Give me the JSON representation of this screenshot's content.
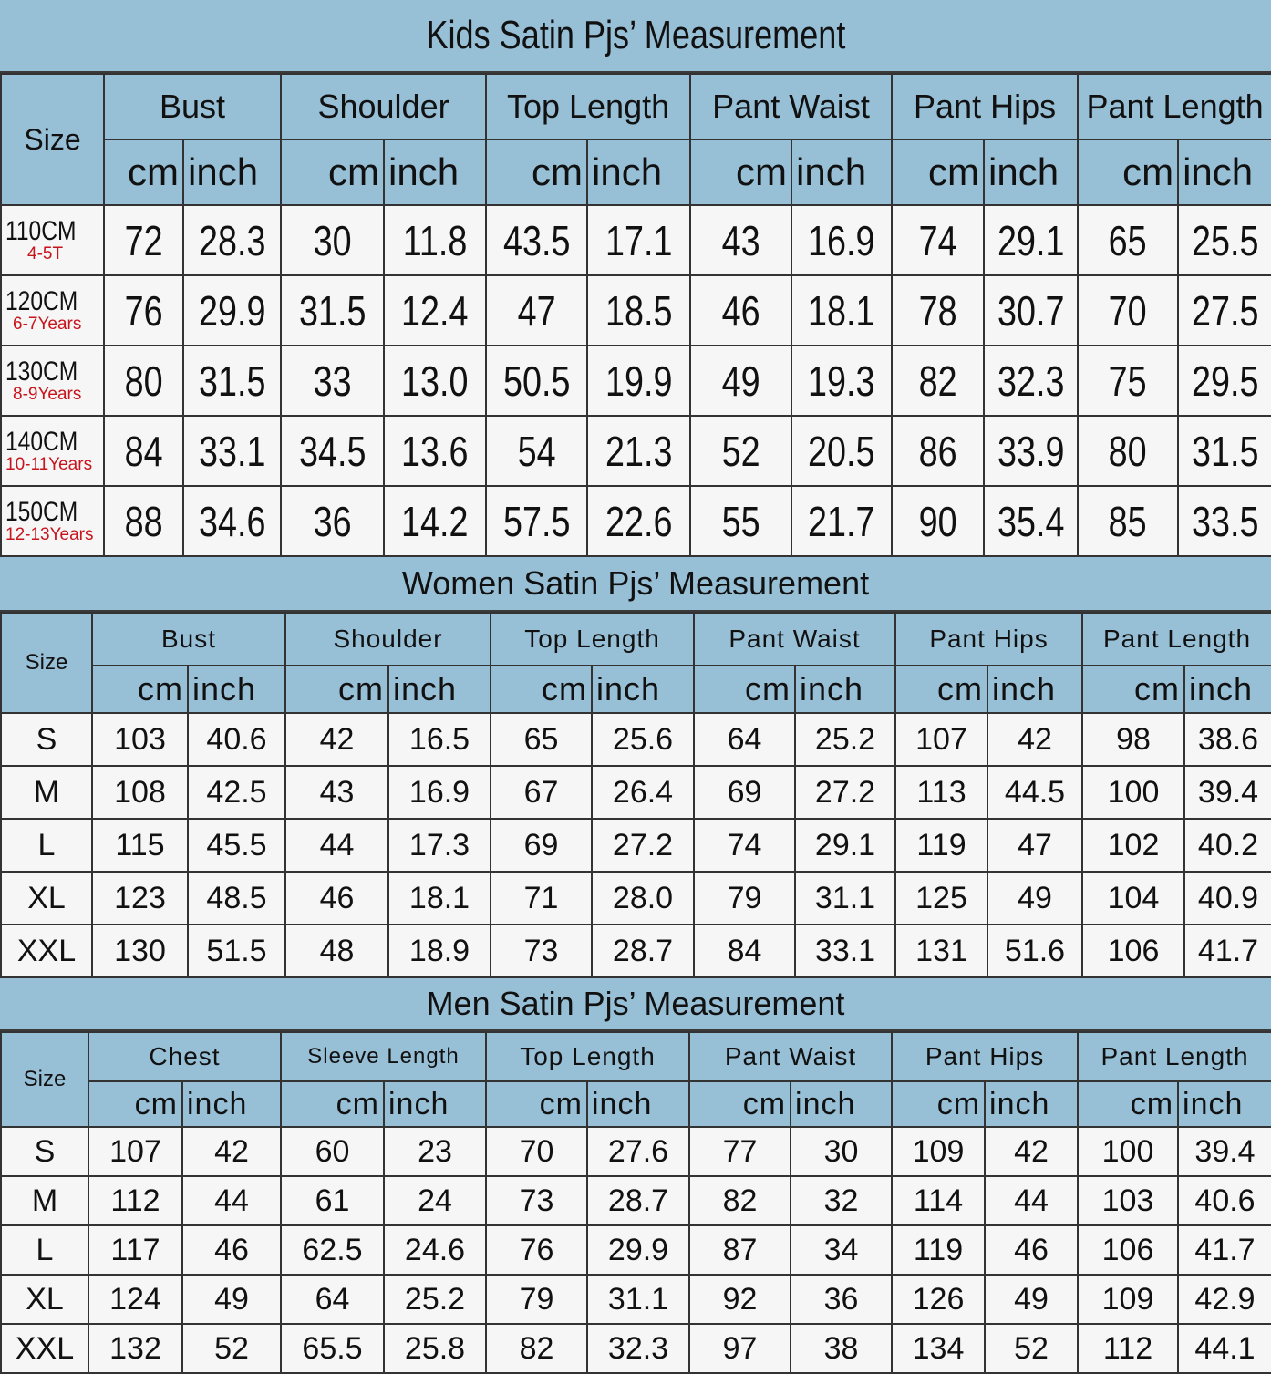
{
  "tables": [
    {
      "title": "Kids Satin Pjs’ Measurement",
      "size_header": "Size",
      "groups": [
        "Bust",
        "Shoulder",
        "Top Length",
        "Pant Waist",
        "Pant Hips",
        "Pant Length"
      ],
      "unit_labels": [
        "cm",
        "inch"
      ],
      "rows": [
        {
          "size": "110CM",
          "age": "4-5T",
          "values": [
            "72",
            "28.3",
            "30",
            "11.8",
            "43.5",
            "17.1",
            "43",
            "16.9",
            "74",
            "29.1",
            "65",
            "25.5"
          ]
        },
        {
          "size": "120CM",
          "age": "6-7Years",
          "values": [
            "76",
            "29.9",
            "31.5",
            "12.4",
            "47",
            "18.5",
            "46",
            "18.1",
            "78",
            "30.7",
            "70",
            "27.5"
          ]
        },
        {
          "size": "130CM",
          "age": "8-9Years",
          "values": [
            "80",
            "31.5",
            "33",
            "13.0",
            "50.5",
            "19.9",
            "49",
            "19.3",
            "82",
            "32.3",
            "75",
            "29.5"
          ]
        },
        {
          "size": "140CM",
          "age": "10-11Years",
          "values": [
            "84",
            "33.1",
            "34.5",
            "13.6",
            "54",
            "21.3",
            "52",
            "20.5",
            "86",
            "33.9",
            "80",
            "31.5"
          ]
        },
        {
          "size": "150CM",
          "age": "12-13Years",
          "values": [
            "88",
            "34.6",
            "36",
            "14.2",
            "57.5",
            "22.6",
            "55",
            "21.7",
            "90",
            "35.4",
            "85",
            "33.5"
          ]
        }
      ]
    },
    {
      "title": "Women Satin Pjs’ Measurement",
      "size_header": "Size",
      "groups": [
        "Bust",
        "Shoulder",
        "Top Length",
        "Pant Waist",
        "Pant Hips",
        "Pant Length"
      ],
      "unit_labels": [
        "cm",
        "inch"
      ],
      "rows": [
        {
          "size": "S",
          "values": [
            "103",
            "40.6",
            "42",
            "16.5",
            "65",
            "25.6",
            "64",
            "25.2",
            "107",
            "42",
            "98",
            "38.6"
          ]
        },
        {
          "size": "M",
          "values": [
            "108",
            "42.5",
            "43",
            "16.9",
            "67",
            "26.4",
            "69",
            "27.2",
            "113",
            "44.5",
            "100",
            "39.4"
          ]
        },
        {
          "size": "L",
          "values": [
            "115",
            "45.5",
            "44",
            "17.3",
            "69",
            "27.2",
            "74",
            "29.1",
            "119",
            "47",
            "102",
            "40.2"
          ]
        },
        {
          "size": "XL",
          "values": [
            "123",
            "48.5",
            "46",
            "18.1",
            "71",
            "28.0",
            "79",
            "31.1",
            "125",
            "49",
            "104",
            "40.9"
          ]
        },
        {
          "size": "XXL",
          "values": [
            "130",
            "51.5",
            "48",
            "18.9",
            "73",
            "28.7",
            "84",
            "33.1",
            "131",
            "51.6",
            "106",
            "41.7"
          ]
        }
      ]
    },
    {
      "title": "Men Satin Pjs’ Measurement",
      "size_header": "Size",
      "groups": [
        "Chest",
        "Sleeve Length",
        "Top Length",
        "Pant Waist",
        "Pant Hips",
        "Pant Length"
      ],
      "unit_labels": [
        "cm",
        "inch"
      ],
      "rows": [
        {
          "size": "S",
          "values": [
            "107",
            "42",
            "60",
            "23",
            "70",
            "27.6",
            "77",
            "30",
            "109",
            "42",
            "100",
            "39.4"
          ]
        },
        {
          "size": "M",
          "values": [
            "112",
            "44",
            "61",
            "24",
            "73",
            "28.7",
            "82",
            "32",
            "114",
            "44",
            "103",
            "40.6"
          ]
        },
        {
          "size": "L",
          "values": [
            "117",
            "46",
            "62.5",
            "24.6",
            "76",
            "29.9",
            "87",
            "34",
            "119",
            "46",
            "106",
            "41.7"
          ]
        },
        {
          "size": "XL",
          "values": [
            "124",
            "49",
            "64",
            "25.2",
            "79",
            "31.1",
            "92",
            "36",
            "126",
            "49",
            "109",
            "42.9"
          ]
        },
        {
          "size": "XXL",
          "values": [
            "132",
            "52",
            "65.5",
            "25.8",
            "82",
            "32.3",
            "97",
            "38",
            "134",
            "52",
            "112",
            "44.1"
          ]
        }
      ]
    }
  ],
  "colors": {
    "header_bg": "#97bfd6",
    "age_text": "#c8141c",
    "cell_bg": "#f6f6f6"
  }
}
